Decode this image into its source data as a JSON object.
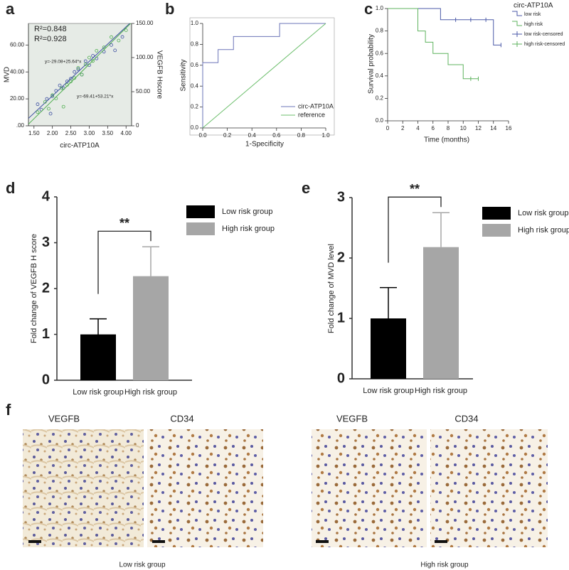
{
  "panel_labels": [
    "a",
    "b",
    "c",
    "d",
    "e",
    "f"
  ],
  "chart_data": [
    {
      "type": "scatter",
      "xlabel": "circ-ATP10A",
      "ylabel": "MVD",
      "y2label": "VEGFB Hscore",
      "xlim": [
        1.35,
        4.15
      ],
      "xticks": [
        {
          "value": 1.5,
          "label": "1.50"
        },
        {
          "value": 2.0,
          "label": "2.00"
        },
        {
          "value": 2.5,
          "label": "2.50"
        },
        {
          "value": 3.0,
          "label": "3.00"
        },
        {
          "value": 3.5,
          "label": "3.50"
        },
        {
          "value": 4.0,
          "label": "4.00"
        }
      ],
      "ylim": [
        0,
        76
      ],
      "yticks": [
        {
          "value": 0,
          "label": ".00"
        },
        {
          "value": 20,
          "label": "20.00"
        },
        {
          "value": 40,
          "label": "40.00"
        },
        {
          "value": 60,
          "label": "60.00"
        }
      ],
      "y2lim": [
        0,
        150
      ],
      "y2ticks": [
        0,
        {
          "value": 50,
          "label": "50.00"
        },
        {
          "value": 100,
          "label": "100.00"
        },
        {
          "value": 150,
          "label": "150.00"
        }
      ],
      "series": [
        {
          "color": "#3b4ea0",
          "axis": "y",
          "r2_label": "R²=0.848",
          "x": [
            1.6,
            1.7,
            1.85,
            1.95,
            2.0,
            2.1,
            2.2,
            2.3,
            2.4,
            2.5,
            2.6,
            2.7,
            2.8,
            2.9,
            3.0,
            3.1,
            3.2,
            3.4,
            3.6,
            3.7,
            3.9
          ],
          "values": [
            16,
            12,
            20,
            9,
            22,
            26,
            30,
            28,
            33,
            35,
            40,
            42,
            38,
            48,
            45,
            52,
            50,
            55,
            60,
            56,
            66
          ],
          "fit": {
            "intercept": -29.08,
            "slope": 25.64,
            "label": "y=-29.08+25.64*x"
          }
        },
        {
          "color": "#4fae4f",
          "axis": "y2",
          "r2_label": "R²=0.928",
          "x": [
            1.6,
            1.8,
            1.9,
            2.0,
            2.1,
            2.25,
            2.3,
            2.4,
            2.5,
            2.6,
            2.7,
            2.8,
            2.9,
            3.0,
            3.1,
            3.2,
            3.4,
            3.6,
            3.8,
            4.0
          ],
          "values": [
            20,
            35,
            25,
            45,
            40,
            55,
            28,
            60,
            65,
            70,
            85,
            75,
            90,
            100,
            95,
            110,
            115,
            130,
            125,
            140
          ],
          "fit": {
            "intercept": -69.41,
            "slope": 53.21,
            "label": "y=-69.41+53.21*x"
          }
        }
      ]
    },
    {
      "type": "line",
      "xlabel": "1-Specificity",
      "ylabel": "Sensitivity",
      "xlim": [
        0,
        1
      ],
      "xticks": [
        {
          "value": 0,
          "label": "0.0"
        },
        0.2,
        0.4,
        0.6,
        0.8,
        {
          "value": 1,
          "label": "1.0"
        }
      ],
      "ylim": [
        0,
        1
      ],
      "yticks": [
        {
          "value": 0,
          "label": "0.0"
        },
        0.2,
        0.4,
        0.6,
        0.8,
        {
          "value": 1,
          "label": "1.0"
        }
      ],
      "series": [
        {
          "name": "circ-ATP10A",
          "color": "#6b74b8",
          "x": [
            0,
            0,
            0.125,
            0.125,
            0.25,
            0.25,
            0.625,
            0.625,
            1
          ],
          "values": [
            0,
            0.625,
            0.625,
            0.75,
            0.75,
            0.875,
            0.875,
            1,
            1
          ]
        },
        {
          "name": "reference",
          "color": "#6dbf6d",
          "x": [
            0,
            1
          ],
          "values": [
            0,
            1
          ]
        }
      ]
    },
    {
      "type": "step",
      "xlabel": "Time (months)",
      "ylabel": "Survival probability",
      "legend_title": "circ-ATP10A",
      "xlim": [
        0,
        16
      ],
      "xticks": [
        0,
        2,
        4,
        6,
        8,
        10,
        12,
        14,
        16
      ],
      "ylim": [
        0,
        1
      ],
      "yticks": [
        {
          "value": 0,
          "label": "0.0"
        },
        0.2,
        0.4,
        0.6,
        0.8,
        {
          "value": 1,
          "label": "1.0"
        }
      ],
      "series": [
        {
          "name": "low risk",
          "kind": "step",
          "color": "#4b5aa8",
          "x": [
            0,
            7,
            7,
            14,
            14,
            15
          ],
          "values": [
            1,
            1,
            0.9,
            0.9,
            0.675,
            0.675
          ]
        },
        {
          "name": "high risk",
          "kind": "step",
          "color": "#5fb35f",
          "x": [
            0,
            4,
            4,
            5,
            5,
            6,
            6,
            8,
            8,
            10,
            10,
            12
          ],
          "values": [
            1,
            1,
            0.8,
            0.8,
            0.7,
            0.7,
            0.6,
            0.6,
            0.5,
            0.5,
            0.375,
            0.375
          ]
        },
        {
          "name": "low risk-censored",
          "kind": "censor",
          "color": "#4b5aa8",
          "x": [
            9,
            11,
            13,
            15
          ],
          "values": [
            0.9,
            0.9,
            0.9,
            0.675
          ]
        },
        {
          "name": "high risk-censored",
          "kind": "censor",
          "color": "#5fb35f",
          "x": [
            11,
            12
          ],
          "values": [
            0.375,
            0.375
          ]
        }
      ]
    },
    {
      "type": "bar",
      "ylabel": "Fold change of VEGFB H score",
      "annotation": "**",
      "categories": [
        "Low risk group",
        "High risk group"
      ],
      "values": [
        1.0,
        2.27
      ],
      "errors": [
        0.34,
        0.64
      ],
      "colors": [
        "#000000",
        "#a6a6a6"
      ],
      "ylim": [
        0,
        4
      ],
      "yticks": [
        0,
        1,
        2,
        3,
        4
      ]
    },
    {
      "type": "bar",
      "ylabel": "Fold change of MVD level",
      "annotation": "**",
      "categories": [
        "Low risk group",
        "High risk group"
      ],
      "values": [
        1.0,
        2.18
      ],
      "errors": [
        0.51,
        0.57
      ],
      "colors": [
        "#000000",
        "#a6a6a6"
      ],
      "ylim": [
        0,
        3
      ],
      "yticks": [
        0,
        1,
        2,
        3
      ]
    }
  ],
  "panel_f": {
    "columns": [
      "VEGFB",
      "CD34",
      "VEGFB",
      "CD34"
    ],
    "groups": [
      "Low risk group",
      "High risk group"
    ]
  }
}
